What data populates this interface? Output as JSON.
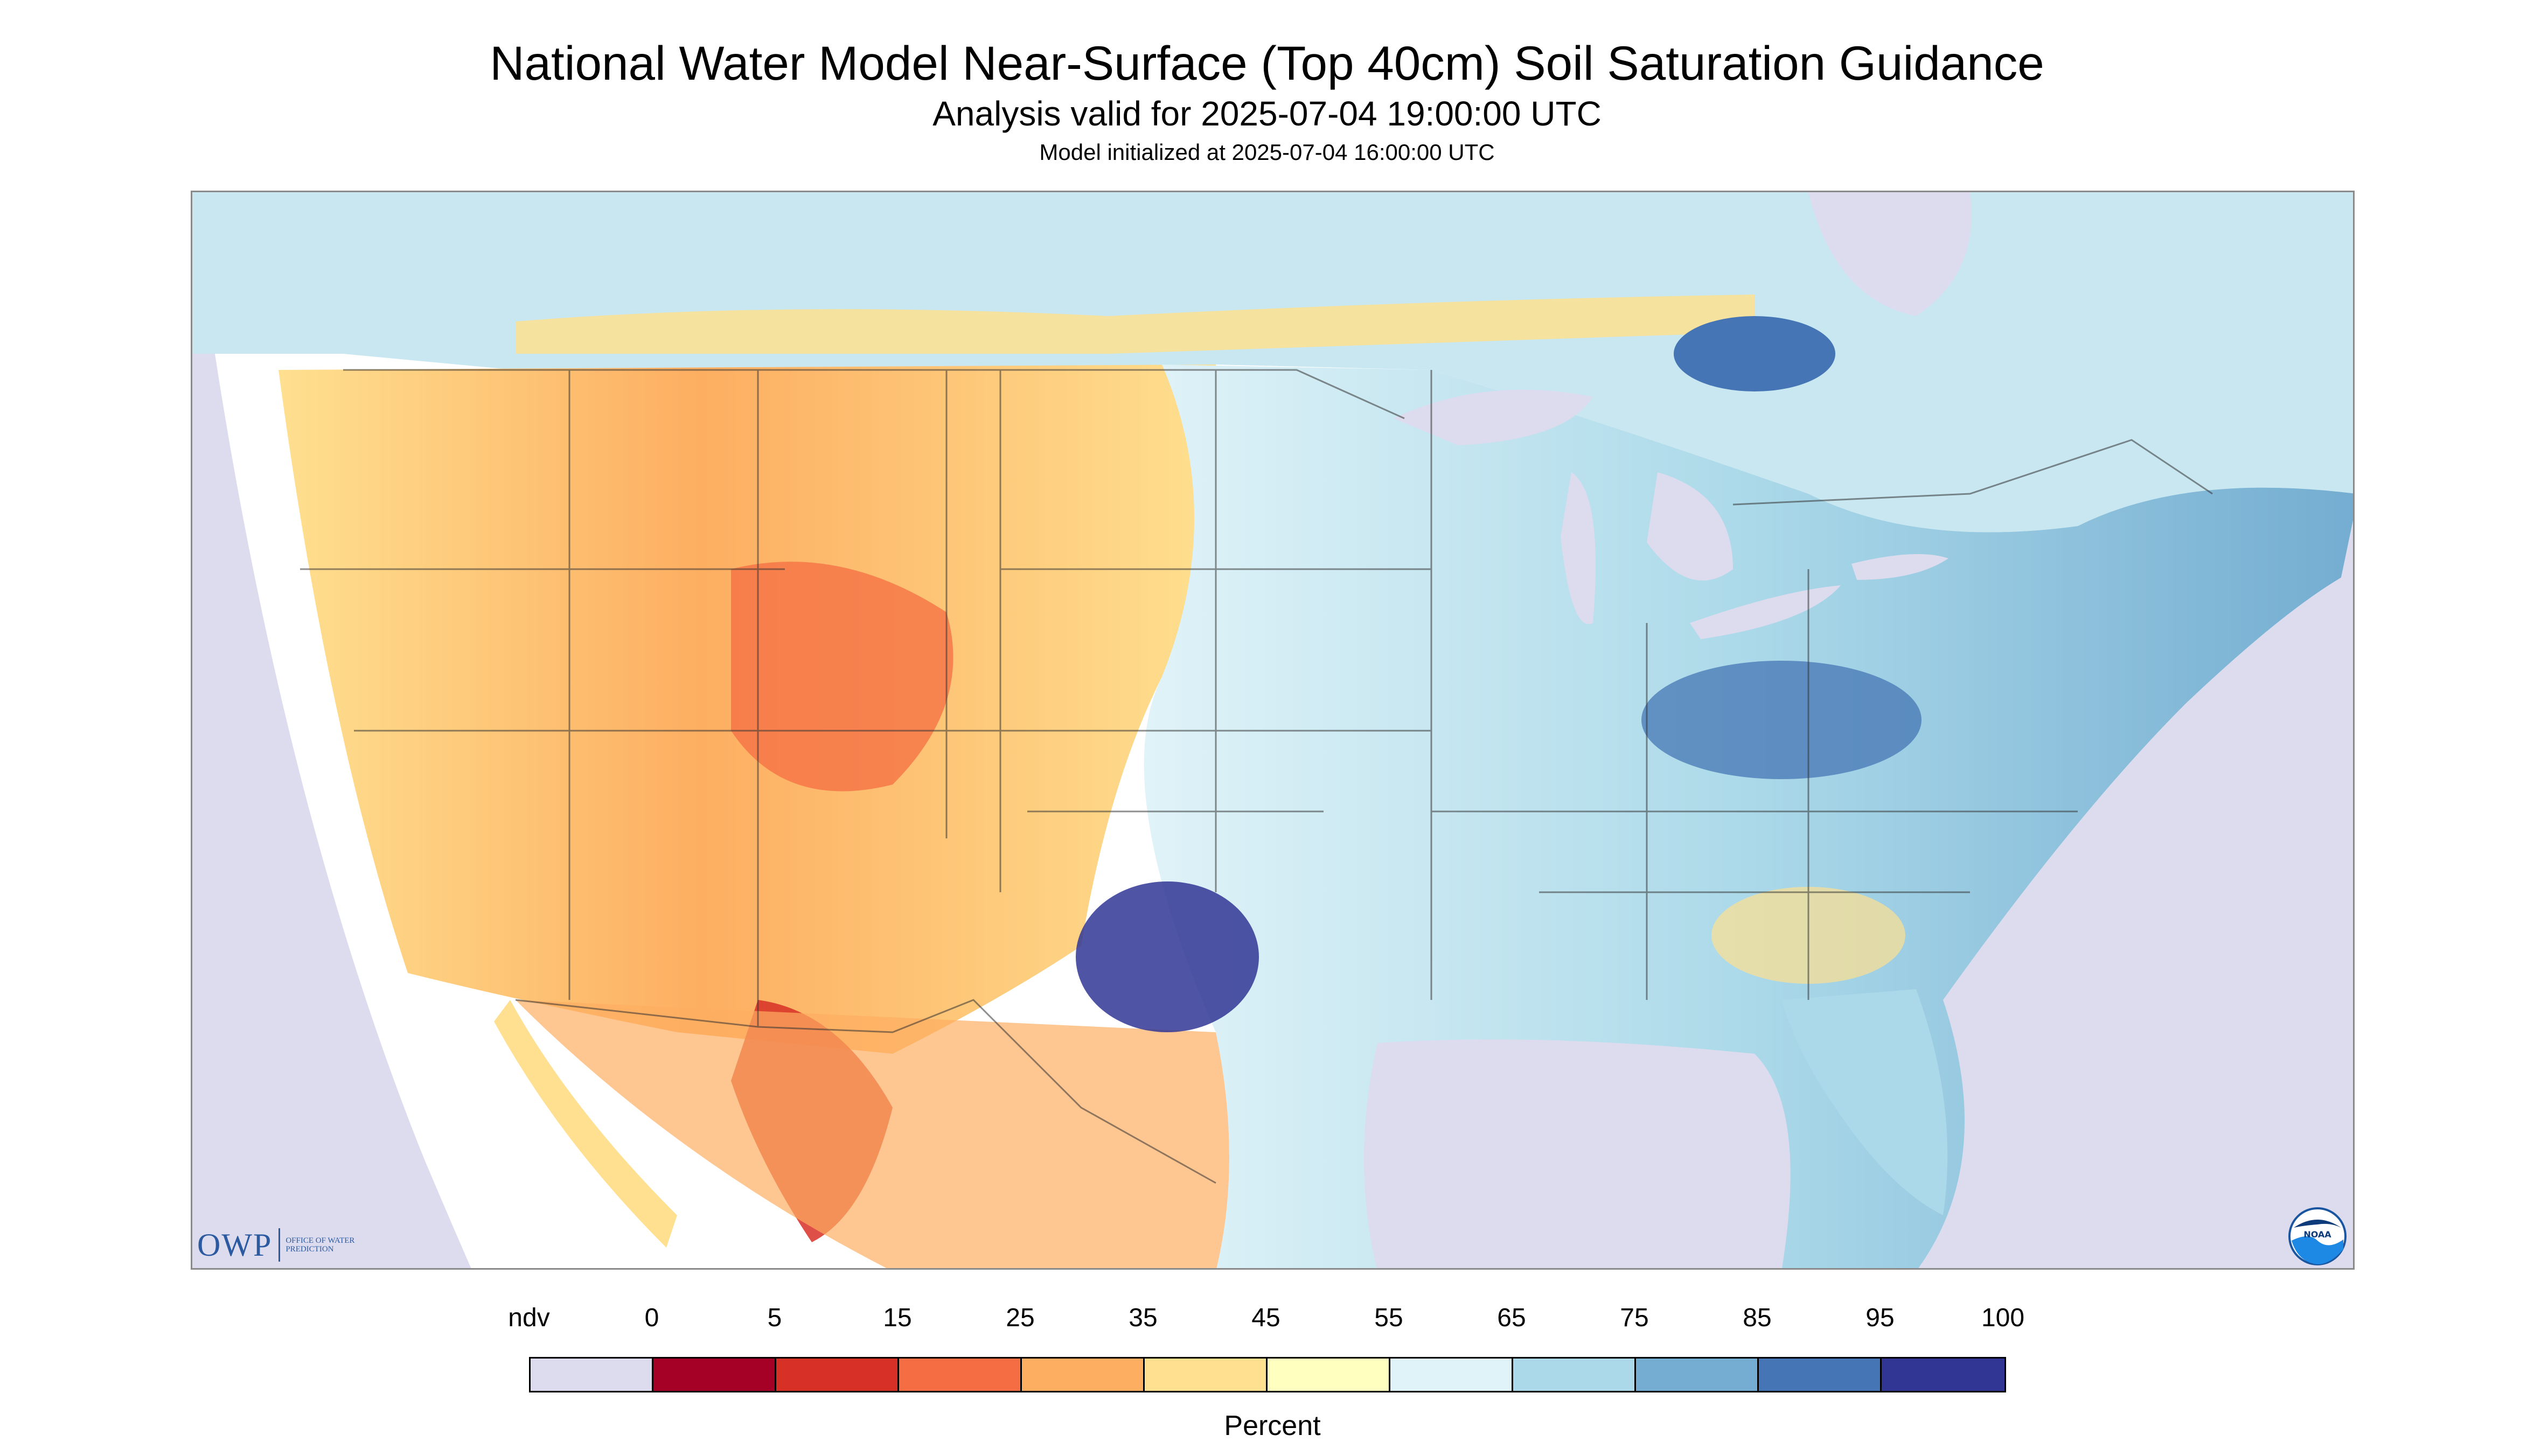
{
  "title": "National Water Model Near-Surface (Top 40cm) Soil Saturation Guidance",
  "valid_subtitle": "Analysis valid for 2025-07-04 19:00:00 UTC",
  "init_subtitle": "Model initialized at 2025-07-04 16:00:00 UTC",
  "legend": {
    "unit": "Percent",
    "labels": [
      "ndv",
      "0",
      "5",
      "15",
      "25",
      "35",
      "45",
      "55",
      "65",
      "75",
      "85",
      "95",
      "100"
    ],
    "colors": [
      "#dcdcee",
      "#a50026",
      "#d73027",
      "#f46d43",
      "#fdae61",
      "#fee090",
      "#ffffbf",
      "#e0f3f8",
      "#abd9e9",
      "#74add1",
      "#4575b4",
      "#313695"
    ]
  },
  "map": {
    "colors": {
      "no_data": "#dcdcee",
      "water": "#dcdcee",
      "boundary": "#333333"
    },
    "regions": {
      "west": "dry",
      "southwest": "very dry",
      "plains_north": "moderate",
      "texas_central": "very wet",
      "east": "wet",
      "southeast": "mixed"
    }
  },
  "logos": {
    "owp": "OWP",
    "owp_text": "OFFICE OF WATER PREDICTION",
    "noaa": "NOAA"
  }
}
